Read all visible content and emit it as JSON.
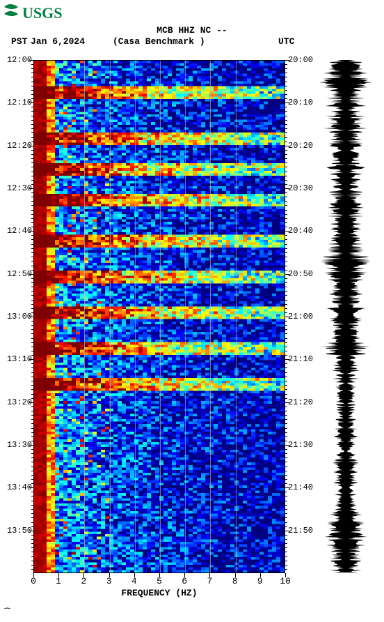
{
  "brand": "USGS",
  "logo_color": "#007f3f",
  "header": {
    "line1": "MCB HHZ NC --"
  },
  "tz_left": "PST",
  "date": "Jan 6,2024",
  "site": "(Casa Benchmark )",
  "tz_right": "UTC",
  "xaxis": {
    "label": "FREQUENCY (HZ)",
    "min": 0,
    "max": 10,
    "ticks": [
      0,
      1,
      2,
      3,
      4,
      5,
      6,
      7,
      8,
      9,
      10
    ]
  },
  "yleft": {
    "ticks": [
      "12:00",
      "12:10",
      "12:20",
      "12:30",
      "12:40",
      "12:50",
      "13:00",
      "13:10",
      "13:20",
      "13:30",
      "13:40",
      "13:50"
    ],
    "positions": [
      0.0,
      0.083,
      0.167,
      0.25,
      0.333,
      0.417,
      0.5,
      0.583,
      0.667,
      0.75,
      0.833,
      0.917
    ]
  },
  "yright": {
    "ticks": [
      "20:00",
      "20:10",
      "20:20",
      "20:30",
      "20:40",
      "20:50",
      "21:00",
      "21:10",
      "21:20",
      "21:30",
      "21:40",
      "21:50"
    ],
    "positions": [
      0.0,
      0.083,
      0.167,
      0.25,
      0.333,
      0.417,
      0.5,
      0.583,
      0.667,
      0.75,
      0.833,
      0.917
    ]
  },
  "minor_yticks_per_major": 10,
  "grid_x_positions": [
    2,
    3,
    4,
    5,
    6,
    7,
    8
  ],
  "spectrogram": {
    "type": "spectrogram",
    "nx": 60,
    "ny": 200,
    "colormap": [
      "#00007f",
      "#0000ff",
      "#007fff",
      "#00ffff",
      "#7fff7f",
      "#ffff00",
      "#ff7f00",
      "#ff0000",
      "#7f0000"
    ],
    "background_color": "#ffffff",
    "seed": 20240106,
    "low_freq_hot": true,
    "band_rows": [
      0.06,
      0.15,
      0.21,
      0.27,
      0.35,
      0.42,
      0.49,
      0.56,
      0.63
    ]
  },
  "waveform": {
    "type": "waveform",
    "n": 736,
    "color": "#000000",
    "seed": 20240107,
    "envelope": [
      [
        0.0,
        0.55
      ],
      [
        0.04,
        0.95
      ],
      [
        0.08,
        0.7
      ],
      [
        0.12,
        0.85
      ],
      [
        0.16,
        0.65
      ],
      [
        0.2,
        0.8
      ],
      [
        0.24,
        0.6
      ],
      [
        0.28,
        0.75
      ],
      [
        0.32,
        0.55
      ],
      [
        0.36,
        0.7
      ],
      [
        0.4,
        0.95
      ],
      [
        0.44,
        0.6
      ],
      [
        0.48,
        0.75
      ],
      [
        0.52,
        0.55
      ],
      [
        0.56,
        0.9
      ],
      [
        0.6,
        0.5
      ],
      [
        0.64,
        0.45
      ],
      [
        0.68,
        0.4
      ],
      [
        0.72,
        0.45
      ],
      [
        0.76,
        0.4
      ],
      [
        0.8,
        0.5
      ],
      [
        0.84,
        0.4
      ],
      [
        0.88,
        0.55
      ],
      [
        0.92,
        0.9
      ],
      [
        0.96,
        0.6
      ],
      [
        1.0,
        0.55
      ]
    ]
  },
  "footer_glyph": "⁀"
}
